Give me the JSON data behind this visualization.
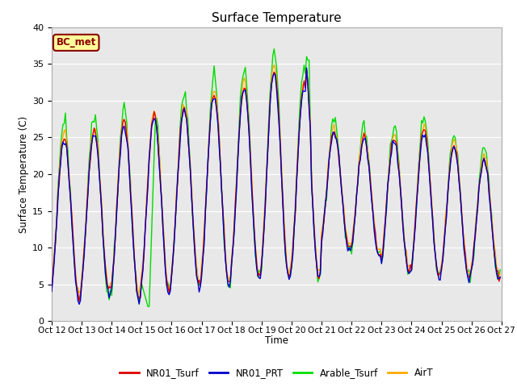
{
  "title": "Surface Temperature",
  "ylabel": "Surface Temperature (C)",
  "xlabel": "Time",
  "ylim": [
    0,
    40
  ],
  "annotation": "BC_met",
  "background_color": "#e8e8e8",
  "colors": {
    "NR01_Tsurf": "#dd0000",
    "NR01_PRT": "#0000cc",
    "Arable_Tsurf": "#00dd00",
    "AirT": "#ffaa00"
  },
  "legend_labels": [
    "NR01_Tsurf",
    "NR01_PRT",
    "Arable_Tsurf",
    "AirT"
  ],
  "xtick_labels": [
    "Oct 12",
    "Oct 13",
    "Oct 14",
    "Oct 15",
    "Oct 16",
    "Oct 17",
    "Oct 18",
    "Oct 19",
    "Oct 20",
    "Oct 21",
    "Oct 22",
    "Oct 23",
    "Oct 24",
    "Oct 25",
    "Oct 26",
    "Oct 27"
  ],
  "line_width": 1.0,
  "yticks": [
    0,
    5,
    10,
    15,
    20,
    25,
    30,
    35,
    40
  ]
}
